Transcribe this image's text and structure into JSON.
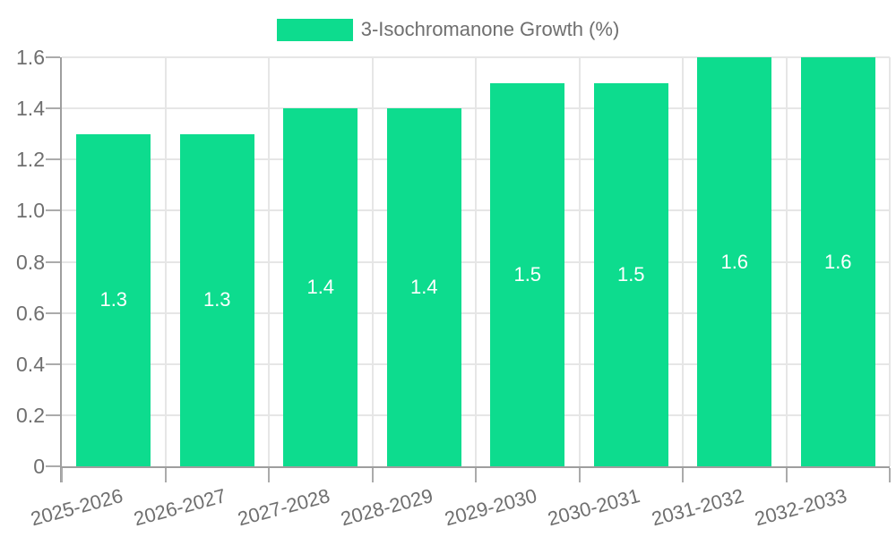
{
  "chart_data": {
    "type": "bar",
    "title": "",
    "legend": {
      "label": "3-Isochromanone Growth (%)",
      "position": "top"
    },
    "categories": [
      "2025-2026",
      "2026-2027",
      "2027-2028",
      "2028-2029",
      "2029-2030",
      "2030-2031",
      "2031-2032",
      "2032-2033"
    ],
    "series": [
      {
        "name": "3-Isochromanone Growth (%)",
        "values": [
          1.3,
          1.3,
          1.4,
          1.4,
          1.5,
          1.5,
          1.6,
          1.6
        ]
      }
    ],
    "bar_value_labels": [
      "1.3",
      "1.3",
      "1.4",
      "1.4",
      "1.5",
      "1.5",
      "1.6",
      "1.6"
    ],
    "xlabel": "",
    "ylabel": "",
    "ylim": [
      0,
      1.6
    ],
    "yticks": {
      "values": [
        0,
        0.2,
        0.4,
        0.6,
        0.8,
        1.0,
        1.2,
        1.4,
        1.6
      ],
      "labels": [
        "0",
        "0.2",
        "0.4",
        "0.6",
        "0.8",
        "1.0",
        "1.2",
        "1.4",
        "1.6"
      ]
    },
    "grid": true,
    "colors": {
      "bar": "#0ddc8e",
      "grid": "#e6e6e6",
      "axis": "#9e9e9e",
      "tick": "#ababab",
      "text": "#6f6f6f",
      "bar_label": "#ffffff",
      "background": "#ffffff"
    }
  }
}
